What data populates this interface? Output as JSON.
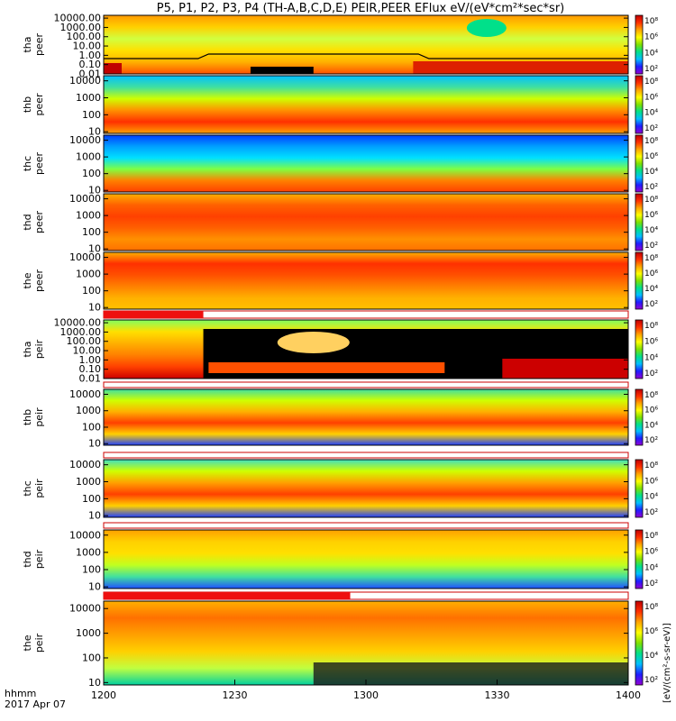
{
  "title": "P5, P1, P2, P3, P4 (TH-A,B,C,D,E) PEIR,PEER EFlux eV/(eV*cm²*sec*sr)",
  "time_axis": {
    "label_line1": "hhmm",
    "label_line2": "2017 Apr 07",
    "ticks": [
      "1200",
      "1230",
      "1300",
      "1330",
      "1400"
    ],
    "range_hhmm": [
      "1200",
      "1400"
    ]
  },
  "colorbar": {
    "tick_labels": [
      "10⁸",
      "10⁶",
      "10⁴",
      "10²"
    ],
    "unit_label": "[eV/(cm²-s-sr-eV)]",
    "colors": [
      "#9400d3",
      "#1e1eff",
      "#00bfff",
      "#00e08a",
      "#7fe000",
      "#ffff00",
      "#ffa500",
      "#ff3000",
      "#c00000"
    ]
  },
  "chart_data": [
    {
      "type": "heatmap",
      "probe": "tha",
      "species": "peer",
      "ylabel": [
        "tha",
        "peer"
      ],
      "yscale": "log",
      "ylim": [
        0.01,
        20000
      ],
      "yticks": [
        "10000.00",
        "1000.00",
        "100.00",
        "10.00",
        "1.00",
        "0.10",
        "0.01"
      ],
      "dominant": "yellow-green broad band, high-energy spot near 1340"
    },
    {
      "type": "heatmap",
      "probe": "thb",
      "species": "peer",
      "ylabel": [
        "thb",
        "peer"
      ],
      "yscale": "log",
      "ylim": [
        8,
        20000
      ],
      "yticks": [
        "10000",
        "1000",
        "100",
        "10"
      ],
      "band_peak_eV": 30
    },
    {
      "type": "heatmap",
      "probe": "thc",
      "species": "peer",
      "ylabel": [
        "thc",
        "peer"
      ],
      "yscale": "log",
      "ylim": [
        8,
        20000
      ],
      "yticks": [
        "10000",
        "1000",
        "100",
        "10"
      ],
      "band_peak_eV": 50
    },
    {
      "type": "heatmap",
      "probe": "thd",
      "species": "peer",
      "ylabel": [
        "thd",
        "peer"
      ],
      "yscale": "log",
      "ylim": [
        8,
        20000
      ],
      "yticks": [
        "10000",
        "1000",
        "100",
        "10"
      ],
      "band_peak_eV": 400
    },
    {
      "type": "heatmap",
      "probe": "the",
      "species": "peer",
      "ylabel": [
        "the",
        "peer"
      ],
      "yscale": "log",
      "ylim": [
        8,
        20000
      ],
      "yticks": [
        "10000",
        "1000",
        "100",
        "10"
      ],
      "band_peak_eV": 2000
    },
    {
      "type": "heatmap",
      "probe": "tha",
      "species": "peir",
      "ylabel": [
        "tha",
        "peir"
      ],
      "yscale": "log",
      "ylim": [
        0.01,
        20000
      ],
      "yticks": [
        "10000.00",
        "1000.00",
        "100.00",
        "10.00",
        "1.00",
        "0.10",
        "0.01"
      ],
      "dominant": "mode change near 1225; red low-energy bands"
    },
    {
      "type": "heatmap",
      "probe": "thb",
      "species": "peir",
      "ylabel": [
        "thb",
        "peir"
      ],
      "yscale": "log",
      "ylim": [
        8,
        20000
      ],
      "yticks": [
        "10000",
        "1000",
        "100",
        "10"
      ],
      "band_peak_eV": 700
    },
    {
      "type": "heatmap",
      "probe": "thc",
      "species": "peir",
      "ylabel": [
        "thc",
        "peir"
      ],
      "yscale": "log",
      "ylim": [
        8,
        20000
      ],
      "yticks": [
        "10000",
        "1000",
        "100",
        "10"
      ],
      "band_peak_eV": 700
    },
    {
      "type": "heatmap",
      "probe": "thd",
      "species": "peir",
      "ylabel": [
        "thd",
        "peir"
      ],
      "yscale": "log",
      "ylim": [
        8,
        20000
      ],
      "yticks": [
        "10000",
        "1000",
        "100",
        "10"
      ],
      "band_peak_eV": 3000
    },
    {
      "type": "heatmap",
      "probe": "the",
      "species": "peir",
      "ylabel": [
        "the",
        "peir"
      ],
      "yscale": "log",
      "ylim": [
        8,
        20000
      ],
      "yticks": [
        "10000",
        "1000",
        "100",
        "10"
      ],
      "band_peak_eV": 3000
    }
  ]
}
